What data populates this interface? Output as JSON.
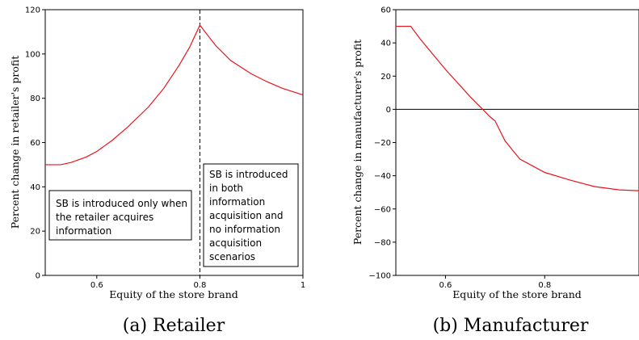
{
  "chart_data": [
    {
      "type": "line",
      "caption": "(a) Retailer",
      "xlabel": "Equity of the store brand",
      "ylabel": "Percent change in retailer's profit",
      "xlim": [
        0.5,
        1.0
      ],
      "ylim": [
        0,
        120
      ],
      "x_ticks": [
        0.6,
        0.8,
        1
      ],
      "y_ticks": [
        0,
        20,
        40,
        60,
        80,
        100,
        120
      ],
      "grid": false,
      "series": [
        {
          "color": "#e8141c",
          "x": [
            0.5,
            0.53,
            0.55,
            0.58,
            0.6,
            0.63,
            0.66,
            0.7,
            0.73,
            0.76,
            0.78,
            0.8,
            0.83,
            0.86,
            0.9,
            0.93,
            0.96,
            1.0
          ],
          "y": [
            50,
            50,
            51,
            53.5,
            56,
            61,
            67,
            76,
            84.5,
            95,
            103,
            113,
            104,
            97,
            91,
            87.5,
            84.5,
            81.5
          ]
        }
      ],
      "vline": {
        "x": 0.8,
        "style": "dashed"
      },
      "annotations": [
        {
          "lines": [
            "SB is introduced only when",
            "the retailer acquires",
            "information"
          ]
        },
        {
          "lines": [
            "SB is introduced",
            "in both",
            "information",
            "acquisition and",
            "no information",
            "acquisition",
            "scenarios"
          ]
        }
      ]
    },
    {
      "type": "line",
      "caption": "(b) Manufacturer",
      "xlabel": "Equity of the store brand",
      "ylabel": "Percent change in manufacturer's profit",
      "xlim": [
        0.5,
        0.99
      ],
      "ylim": [
        -100,
        60
      ],
      "x_ticks": [
        0.6,
        0.8
      ],
      "y_ticks": [
        -100,
        -80,
        -60,
        -40,
        -20,
        0,
        20,
        40,
        60
      ],
      "grid": false,
      "hline": {
        "y": 0
      },
      "series": [
        {
          "color": "#e8141c",
          "x": [
            0.5,
            0.53,
            0.55,
            0.6,
            0.65,
            0.68,
            0.69,
            0.7,
            0.72,
            0.75,
            0.8,
            0.85,
            0.9,
            0.95,
            0.99
          ],
          "y": [
            50,
            50,
            42,
            24,
            7.5,
            -1.5,
            -4.5,
            -7,
            -19,
            -30,
            -38,
            -42.5,
            -46.5,
            -48.5,
            -49
          ]
        }
      ]
    }
  ]
}
